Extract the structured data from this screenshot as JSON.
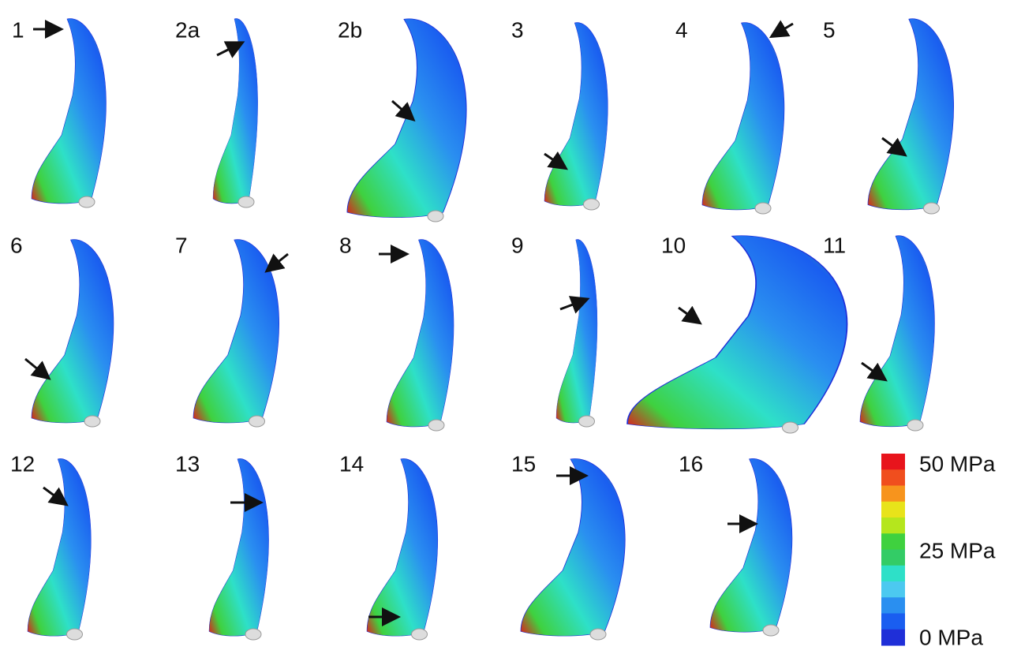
{
  "panels": [
    {
      "label": "1"
    },
    {
      "label": "2a"
    },
    {
      "label": "2b"
    },
    {
      "label": "3"
    },
    {
      "label": "4"
    },
    {
      "label": "5"
    },
    {
      "label": "6"
    },
    {
      "label": "7"
    },
    {
      "label": "8"
    },
    {
      "label": "9"
    },
    {
      "label": "10"
    },
    {
      "label": "11"
    },
    {
      "label": "12"
    },
    {
      "label": "13"
    },
    {
      "label": "14"
    },
    {
      "label": "15"
    },
    {
      "label": "16"
    }
  ],
  "colorbar": {
    "labels": [
      "50 MPa",
      "25 MPa",
      "0 MPa"
    ],
    "colors": [
      "#e8141c",
      "#f04e1e",
      "#f7941d",
      "#e8e31a",
      "#b5e61d",
      "#3fd13f",
      "#33cc66",
      "#2ee0c8",
      "#4cc9f0",
      "#2a8ff0",
      "#1a5ef0",
      "#1f2fd8"
    ]
  }
}
